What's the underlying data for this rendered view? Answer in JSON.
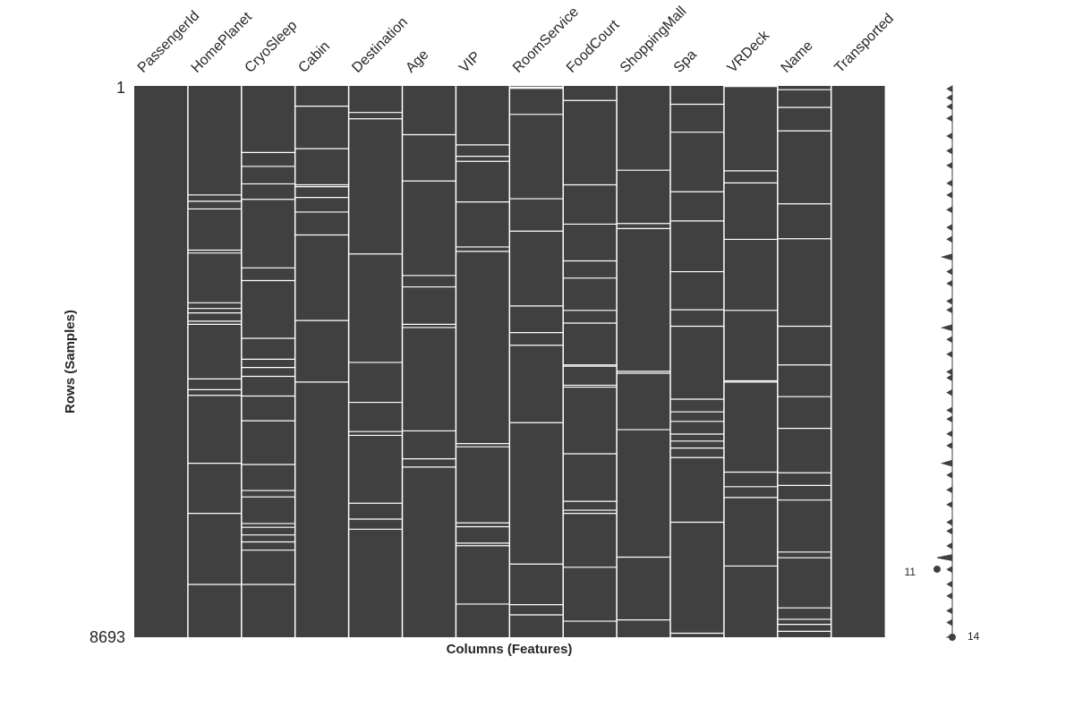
{
  "chart_data": {
    "type": "heatmap",
    "xlabel": "Columns (Features)",
    "ylabel": "Rows (Samples)",
    "row_range": [
      1,
      8693
    ],
    "colors": {
      "filled": "#404040",
      "missing": "#ffffff"
    },
    "columns": [
      {
        "name": "PassengerId",
        "missing_rows": []
      },
      {
        "name": "HomePlanet",
        "missing_rows": [
          1720,
          1820,
          1940,
          2590,
          2635,
          3420,
          3510,
          3580,
          3710,
          3760,
          4620,
          4790,
          4880,
          5950,
          6740,
          7860
        ]
      },
      {
        "name": "CryoSleep",
        "missing_rows": [
          1050,
          1270,
          1545,
          1790,
          2870,
          3070,
          3980,
          4310,
          4440,
          4580,
          4890,
          5280,
          5970,
          6380,
          6480,
          6900,
          6960,
          7080,
          7190,
          7320,
          7860
        ]
      },
      {
        "name": "Cabin",
        "missing_rows": [
          320,
          990,
          1560,
          1590,
          1760,
          1990,
          2350,
          3700,
          4670
        ]
      },
      {
        "name": "Destination",
        "missing_rows": [
          420,
          520,
          2650,
          4360,
          4990,
          5450,
          5510,
          6580,
          6830,
          6990
        ]
      },
      {
        "name": "Age",
        "missing_rows": [
          770,
          1500,
          2990,
          3170,
          3760,
          3810,
          5440,
          5880,
          6010
        ]
      },
      {
        "name": "VIP",
        "missing_rows": [
          930,
          1110,
          1190,
          1830,
          2540,
          2610,
          5640,
          5690,
          6890,
          6950,
          7210,
          7250,
          8170
        ]
      },
      {
        "name": "RoomService",
        "missing_rows": [
          20,
          40,
          450,
          1780,
          2290,
          3470,
          3890,
          4090,
          5310,
          7540,
          8180,
          8340
        ]
      },
      {
        "name": "FoodCourt",
        "missing_rows": [
          230,
          1560,
          2180,
          2760,
          3030,
          3540,
          3740,
          4400,
          4420,
          4720,
          4750,
          5800,
          6550,
          6690,
          6740,
          7590,
          8440
        ]
      },
      {
        "name": "ShoppingMall",
        "missing_rows": [
          1330,
          2170,
          2250,
          4500,
          4530,
          5420,
          7430,
          8420
        ]
      },
      {
        "name": "Spa",
        "missing_rows": [
          290,
          730,
          1670,
          2130,
          2930,
          3530,
          3790,
          4940,
          5140,
          5290,
          5490,
          5600,
          5710,
          5860,
          6880,
          8630
        ]
      },
      {
        "name": "VRDeck",
        "missing_rows": [
          10,
          1340,
          1530,
          2420,
          3540,
          4650,
          4670,
          6090,
          6320,
          6490,
          7570
        ]
      },
      {
        "name": "Name",
        "missing_rows": [
          60,
          340,
          710,
          1860,
          2410,
          3790,
          4400,
          4900,
          5400,
          6100,
          6300,
          6530,
          7350,
          7440,
          8230,
          8410,
          8490,
          8600
        ]
      },
      {
        "name": "Transported",
        "missing_rows": []
      }
    ],
    "sparkline": {
      "min_label": "11",
      "max_label": "14",
      "min_row": 7620,
      "max_row": 8693,
      "completeness": [
        14,
        13,
        14,
        14,
        13,
        14,
        14,
        13,
        14,
        14,
        14,
        13,
        14,
        14,
        14,
        14,
        14,
        13,
        14,
        14,
        14,
        14,
        13,
        14,
        14,
        14,
        14,
        13,
        14,
        14,
        14,
        14,
        14,
        13,
        14,
        14,
        14,
        13,
        14,
        14,
        14,
        14,
        13,
        14,
        14,
        14,
        14,
        14,
        13,
        14,
        14,
        14,
        13,
        14,
        14,
        14,
        14,
        14,
        12,
        14,
        14,
        14,
        14,
        13,
        14,
        14,
        14,
        13,
        14,
        14,
        14,
        14,
        14,
        13,
        14,
        14,
        13,
        14,
        14,
        14,
        14,
        14,
        12,
        14,
        14,
        14,
        13,
        14,
        14,
        14,
        14,
        13,
        14,
        14,
        14,
        14,
        14,
        13,
        14,
        13,
        14,
        14,
        14,
        14,
        13,
        14,
        14,
        14,
        14,
        14,
        13,
        14,
        14,
        13,
        14,
        14,
        14,
        14,
        13,
        14,
        14,
        14,
        13,
        14,
        14,
        14,
        14,
        14,
        12,
        14,
        14,
        14,
        13,
        14,
        14,
        14,
        14,
        13,
        14,
        14,
        14,
        14,
        13,
        14,
        14,
        14,
        14,
        14,
        13,
        14,
        14,
        13,
        14,
        14,
        14,
        14,
        13,
        14,
        14,
        14,
        11,
        14,
        14,
        14,
        13,
        14,
        14,
        14,
        14,
        13,
        14,
        14,
        14,
        13,
        14,
        14,
        14,
        14,
        13,
        14,
        14,
        14,
        13,
        14,
        14,
        14,
        14,
        13
      ]
    }
  }
}
